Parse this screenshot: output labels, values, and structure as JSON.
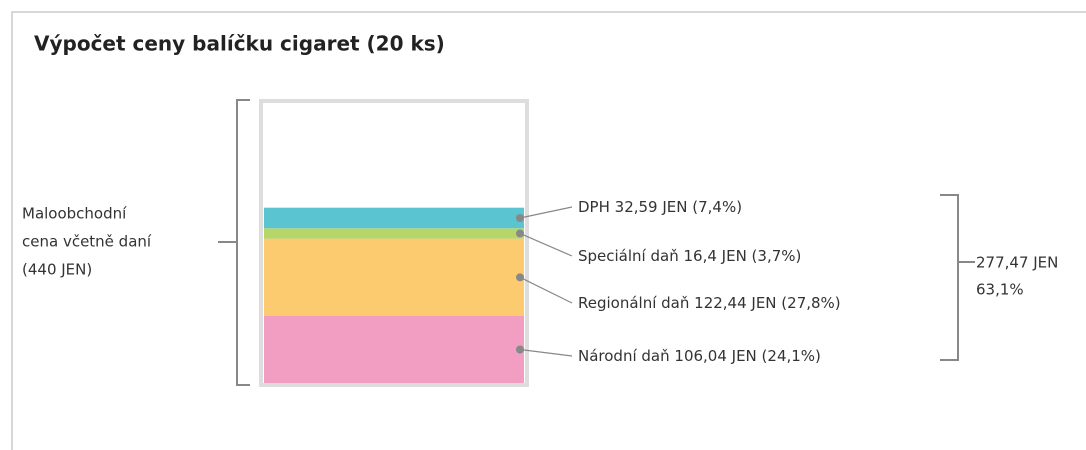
{
  "chart_data": {
    "type": "stacked_bar",
    "title": "Výpočet ceny balíčku cigaret (20 ks)",
    "ylim": [
      0,
      440
    ],
    "total_label": [
      "Maloobchodní",
      "cena včetně daní",
      "(440 JEN)"
    ],
    "tax_total_label": [
      "277,47 JEN",
      "63,1%"
    ],
    "series": [
      {
        "name": "Národní daň",
        "color": "#f19ec2",
        "values": [
          106.04
        ],
        "value_labels": [
          "106,04 JEN (24,1%)"
        ]
      },
      {
        "name": "Regionální daň",
        "color": "#fccb6f",
        "values": [
          122.44
        ],
        "value_labels": [
          "122,44 JEN (27,8%)"
        ]
      },
      {
        "name": "Speciální daň",
        "color": "#b6d56b",
        "values": [
          16.4
        ],
        "value_labels": [
          "16,4 JEN (3,7%)"
        ]
      },
      {
        "name": "DPH",
        "color": "#5bc4d1",
        "values": [
          32.59
        ],
        "value_labels": [
          "32,59 JEN (7,4%)"
        ]
      }
    ]
  }
}
